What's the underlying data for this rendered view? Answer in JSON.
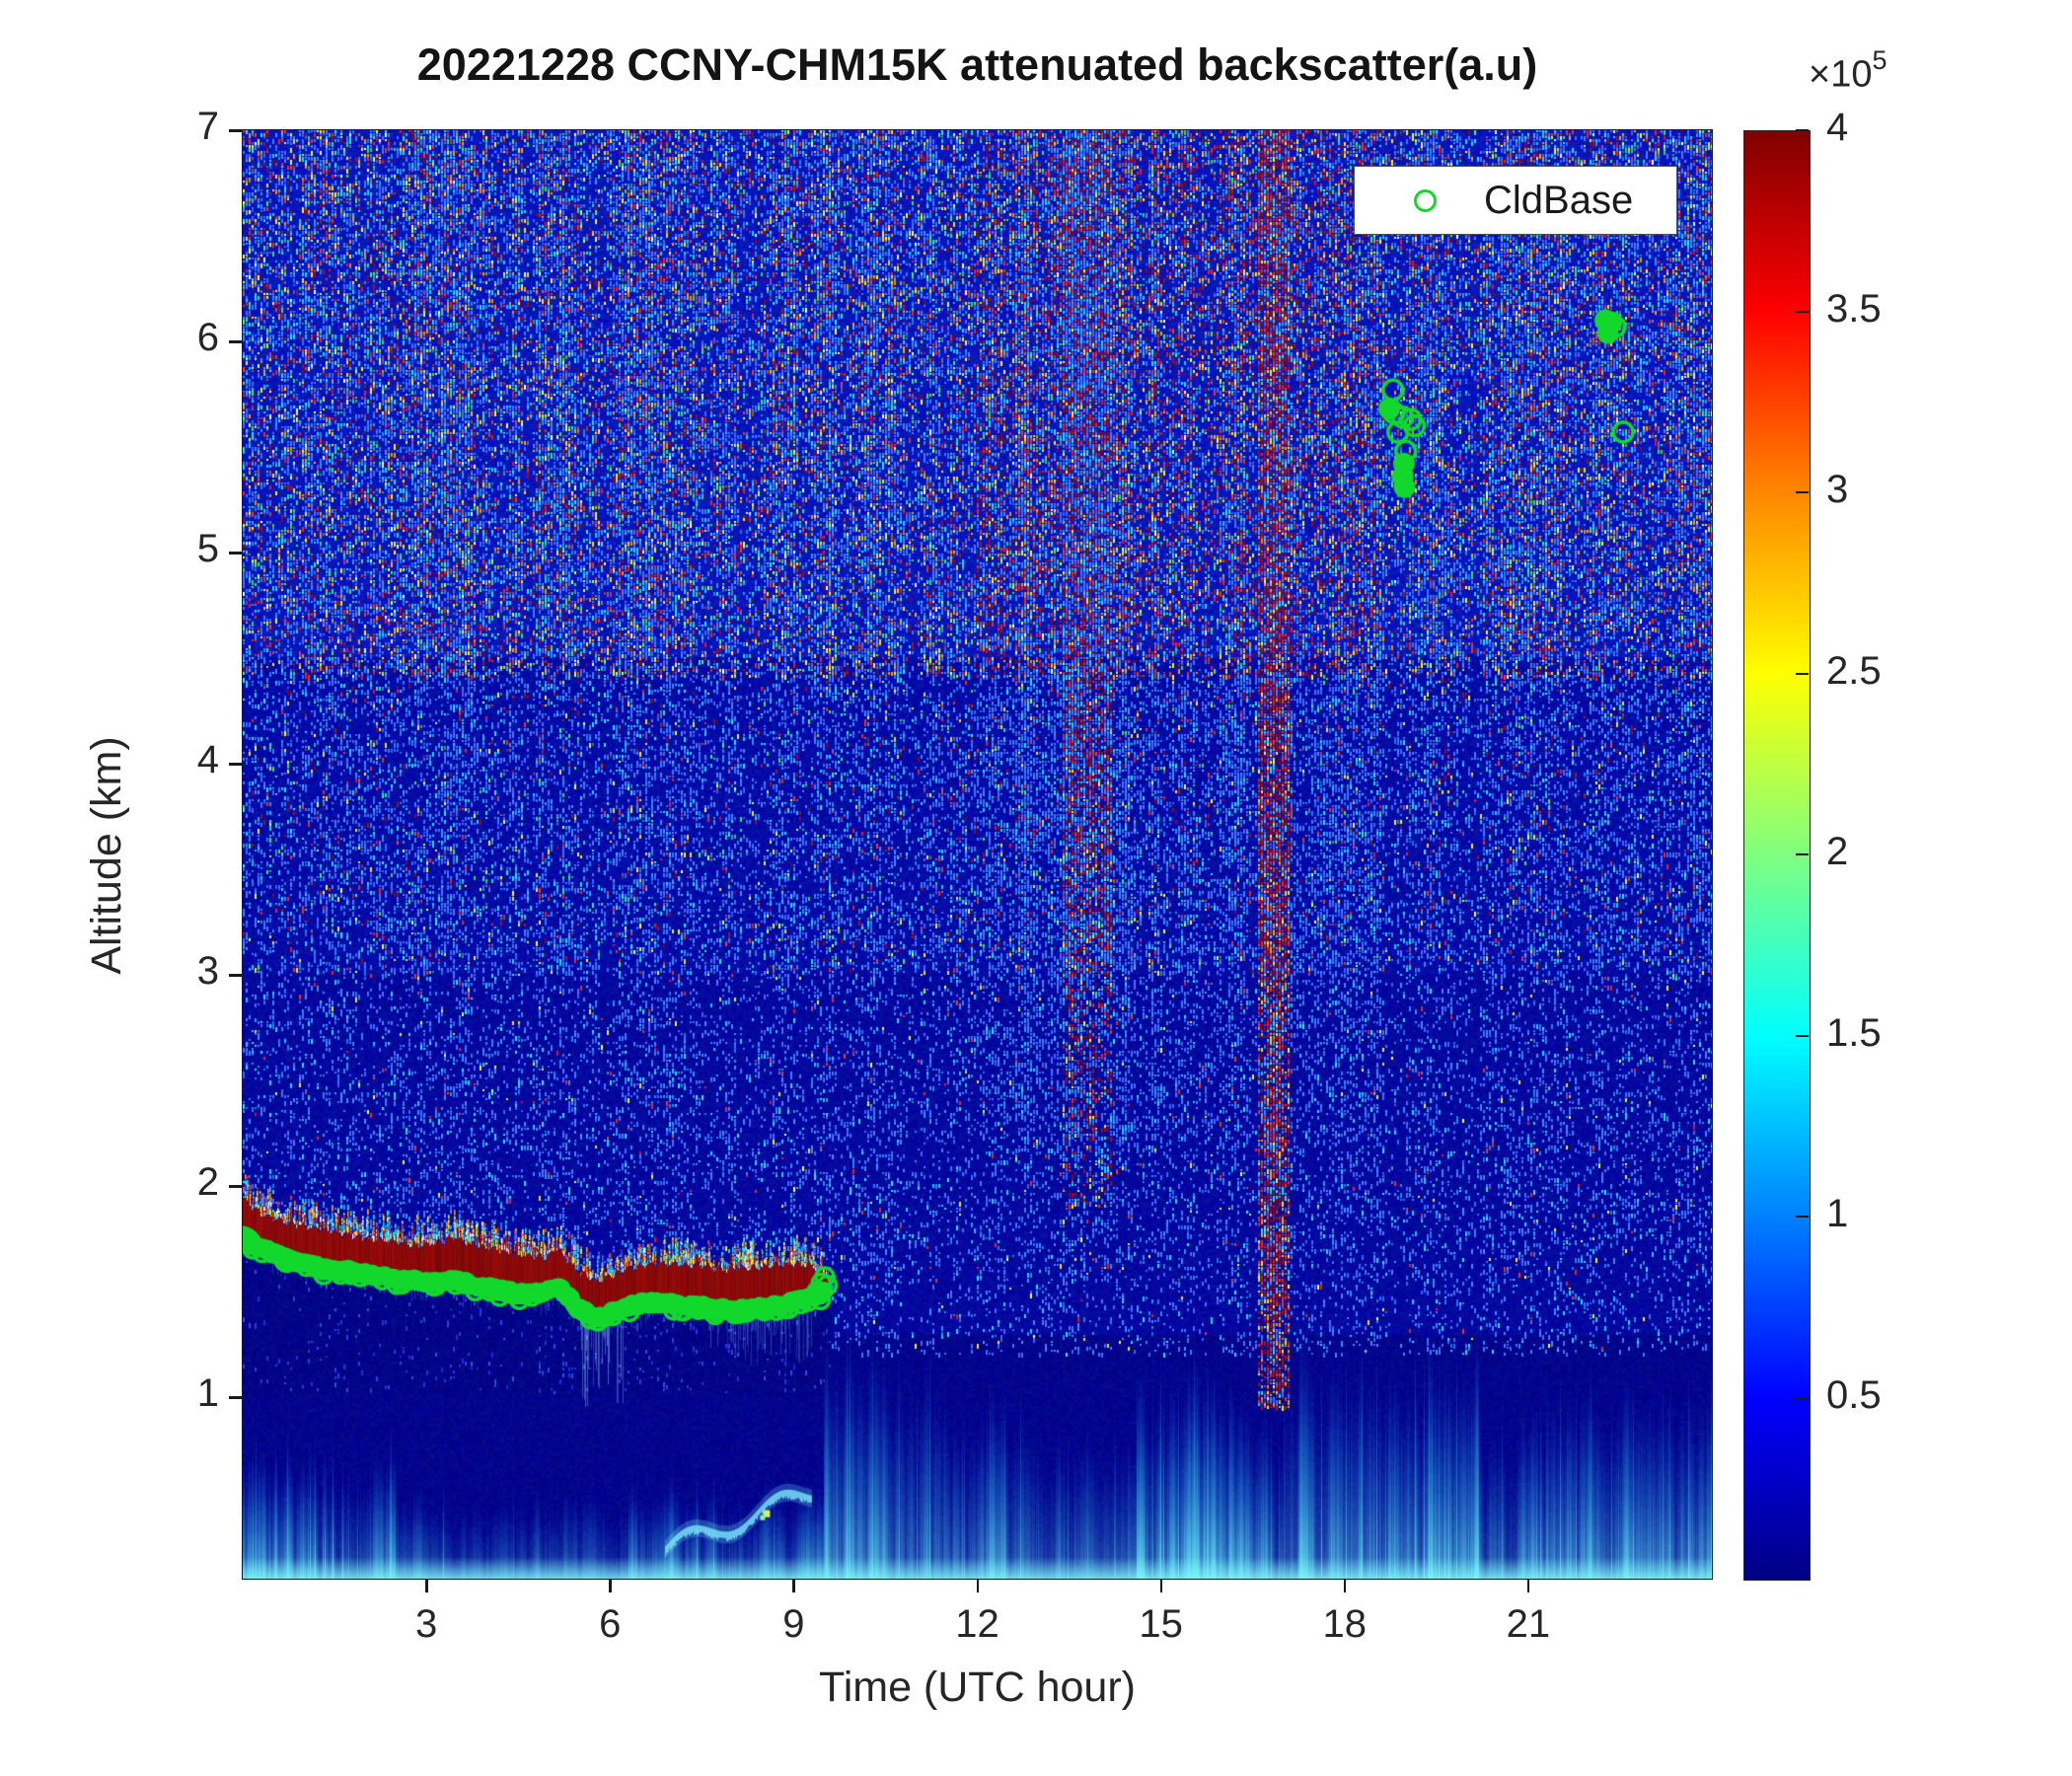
{
  "title": "20221228 CCNY-CHM15K attenuated backscatter(a.u)",
  "axes": {
    "x": {
      "label": "Time (UTC hour)",
      "ticks": [
        3,
        6,
        9,
        12,
        15,
        18,
        21
      ],
      "range_hours": [
        0,
        24
      ]
    },
    "y": {
      "label": "Altitude (km)",
      "ticks": [
        1,
        2,
        3,
        4,
        5,
        6,
        7
      ],
      "range_km": [
        0.14,
        7
      ]
    }
  },
  "legend": {
    "items": [
      {
        "label": "CldBase",
        "marker": "green-open-circle"
      }
    ]
  },
  "colorbar": {
    "exponent_base": "×10",
    "exponent": "5",
    "ticks": [
      4,
      3.5,
      3,
      2.5,
      2,
      1.5,
      1,
      0.5
    ],
    "range": [
      0,
      400000
    ],
    "colormap": "jet"
  },
  "colors": {
    "cloud_red": "#8a0707",
    "marker_green": "#12d82c",
    "surface_cyan": "#6ee8f6",
    "virga_blue": "#96c8ff",
    "text": "#262626"
  },
  "chart_data": {
    "type": "heatmap",
    "title": "20221228 CCNY-CHM15K attenuated backscatter(a.u)",
    "xlabel": "Time (UTC hour)",
    "ylabel": "Altitude (km)",
    "x_range_hours": [
      0,
      24
    ],
    "y_range_km": [
      0.14,
      7
    ],
    "colorbar_range": [
      0,
      400000
    ],
    "colormap": "jet",
    "grid": "off",
    "legend_label": "CldBase",
    "cloud_layer": {
      "comment": "low stratus deck, saturated dark-red (>= 4e5 a.u.)",
      "hours": [
        0,
        0.3,
        0.8,
        1.3,
        1.8,
        2.3,
        2.8,
        3.2,
        3.45,
        3.7,
        4.1,
        4.5,
        4.9,
        5.15,
        5.35,
        5.55,
        5.75,
        6.0,
        6.3,
        6.7,
        7.1,
        7.5,
        7.9,
        8.3,
        8.7,
        9.0,
        9.3,
        9.55
      ],
      "base_km": [
        1.77,
        1.71,
        1.66,
        1.62,
        1.6,
        1.58,
        1.56,
        1.55,
        1.57,
        1.54,
        1.52,
        1.5,
        1.5,
        1.53,
        1.47,
        1.42,
        1.38,
        1.4,
        1.44,
        1.46,
        1.45,
        1.44,
        1.42,
        1.43,
        1.44,
        1.46,
        1.48,
        1.51
      ],
      "top_km": [
        1.94,
        1.86,
        1.82,
        1.79,
        1.76,
        1.74,
        1.72,
        1.73,
        1.76,
        1.72,
        1.7,
        1.67,
        1.66,
        1.7,
        1.63,
        1.58,
        1.55,
        1.57,
        1.61,
        1.63,
        1.63,
        1.62,
        1.6,
        1.61,
        1.62,
        1.63,
        1.62,
        1.57
      ]
    },
    "cloud_base_marker_step_h": 0.04,
    "end_markers": [
      [
        9.38,
        1.5
      ],
      [
        9.45,
        1.54
      ],
      [
        9.51,
        1.57
      ],
      [
        9.55,
        1.53
      ]
    ],
    "high_markers": [
      {
        "h": 18.79,
        "km": 5.77,
        "style": "open"
      },
      {
        "h": 18.73,
        "km": 5.68,
        "style": "blob"
      },
      {
        "h": 18.81,
        "km": 5.66,
        "style": "open"
      },
      {
        "h": 18.95,
        "km": 5.64,
        "style": "open"
      },
      {
        "h": 19.08,
        "km": 5.63,
        "style": "open"
      },
      {
        "h": 19.14,
        "km": 5.6,
        "style": "open"
      },
      {
        "h": 18.87,
        "km": 5.57,
        "style": "open"
      },
      {
        "h": 19.0,
        "km": 5.48,
        "style": "open"
      },
      {
        "h": 18.97,
        "km": 5.42,
        "style": "blob"
      },
      {
        "h": 18.95,
        "km": 5.36,
        "style": "blob"
      },
      {
        "h": 18.98,
        "km": 5.31,
        "style": "blob"
      },
      {
        "h": 22.26,
        "km": 6.1,
        "style": "blob"
      },
      {
        "h": 22.36,
        "km": 6.09,
        "style": "blob"
      },
      {
        "h": 22.3,
        "km": 6.04,
        "style": "blob"
      },
      {
        "h": 22.42,
        "km": 6.07,
        "style": "open"
      },
      {
        "h": 22.55,
        "km": 5.57,
        "style": "open"
      }
    ],
    "features": {
      "surface_layer": [
        [
          0,
          2.5,
          0.75,
          0.55
        ],
        [
          2.5,
          5.2,
          0.55,
          0.35
        ],
        [
          5.2,
          6.3,
          0.55,
          0.3
        ],
        [
          6.3,
          9.5,
          0.6,
          0.5
        ],
        [
          9.5,
          11.5,
          1.25,
          0.6
        ],
        [
          11.5,
          13,
          1.0,
          0.5
        ],
        [
          13,
          14.6,
          0.8,
          0.35
        ],
        [
          14.6,
          16.2,
          1.15,
          0.7
        ],
        [
          16.2,
          17,
          0.95,
          0.55
        ],
        [
          17,
          18.6,
          1.35,
          0.75
        ],
        [
          18.6,
          20.2,
          1.25,
          0.7
        ],
        [
          20.2,
          21.3,
          0.95,
          0.5
        ],
        [
          21.3,
          24,
          1.1,
          0.6
        ]
      ],
      "noise_columns": [
        {
          "hour": 16.85,
          "half_width_h": 0.28,
          "min_km": 0.95,
          "strength": "strong"
        },
        {
          "hour": 13.8,
          "half_width_h": 0.4,
          "min_km": 1.9,
          "strength": "moderate"
        },
        {
          "hour": 12.7,
          "half_width_h": 0.18,
          "min_km": 2.0,
          "strength": "weak"
        }
      ],
      "filament": {
        "h0": 6.9,
        "h1": 9.3,
        "start_km": 0.28,
        "end_km": 0.55,
        "wiggle_km": 0.05,
        "spot_h": 8.55,
        "spot_km": 0.45
      },
      "virga": [
        {
          "h0": 5.5,
          "h1": 6.25,
          "down_to_km": 0.95,
          "strength": 0.55
        },
        {
          "h0": 7.6,
          "h1": 9.4,
          "down_to_km": 1.15,
          "strength": 0.35
        }
      ]
    },
    "noise": {
      "background_blue_high": "#0614b9",
      "background_blue_mid": "#030aa6",
      "background_dark_undercloud": "#000387",
      "speckle_palette": {
        "blue": "#3c78ff",
        "cyan": "#20d8ff",
        "white": "#ecfaff",
        "green": "#3ce15a",
        "yellow": "#f5eb28",
        "orange": "#ff9614",
        "red": "#eb2819",
        "dark_red": "#961010"
      },
      "speckle_density_above_4p4km": 0.48,
      "speckle_density_3_to_4p4km": 0.3,
      "speckle_density_below_3km": 0.2,
      "red_enhancement_hours": [
        12,
        18.5
      ]
    }
  }
}
